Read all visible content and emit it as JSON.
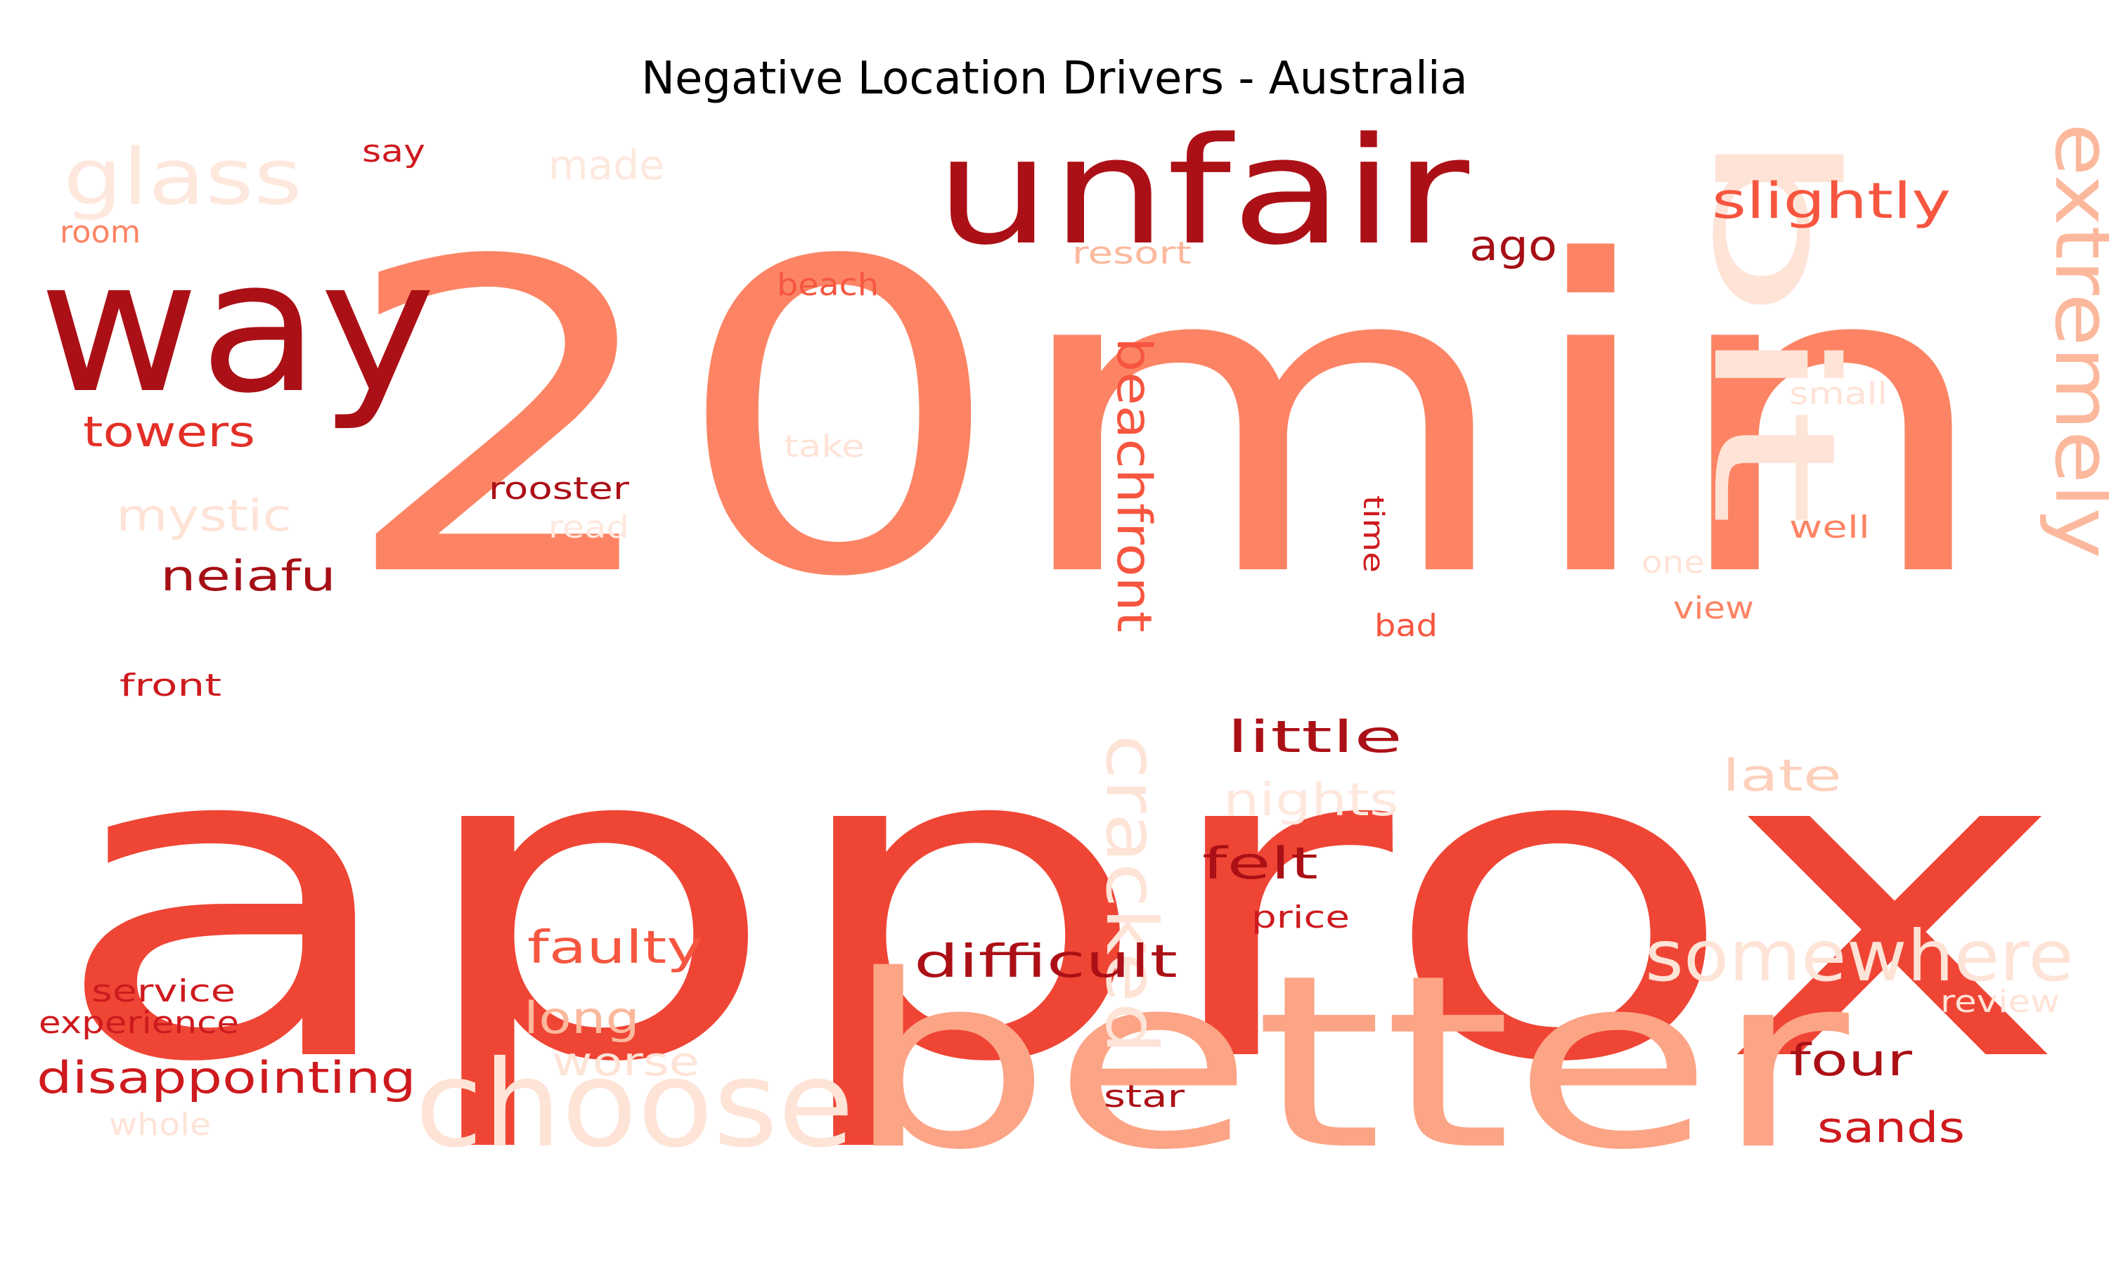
{
  "chart_data": {
    "type": "wordcloud",
    "title": "Negative Location Drivers - Australia",
    "colormap": "Reds",
    "words": [
      {
        "text": "approx",
        "color": "#ef4535"
      },
      {
        "text": "20min",
        "color": "#fc8464"
      },
      {
        "text": "better",
        "color": "#fca486"
      },
      {
        "text": "unfair",
        "color": "#ab1016"
      },
      {
        "text": "way",
        "color": "#ab1016"
      },
      {
        "text": "bit",
        "color": "#fee3d7"
      },
      {
        "text": "choose",
        "color": "#fee3d7"
      },
      {
        "text": "extremely",
        "color": "#fcb89c"
      },
      {
        "text": "somewhere",
        "color": "#fee3d7"
      },
      {
        "text": "cracked",
        "color": "#fee3d7"
      },
      {
        "text": "glass",
        "color": "#fee8de"
      },
      {
        "text": "slightly",
        "color": "#f6563f"
      },
      {
        "text": "beachfront",
        "color": "#f6563f"
      },
      {
        "text": "disappointing",
        "color": "#ce1a1e"
      },
      {
        "text": "difficult",
        "color": "#ab1016"
      },
      {
        "text": "neiafu",
        "color": "#a50f15"
      },
      {
        "text": "towers",
        "color": "#e32f27"
      },
      {
        "text": "faulty",
        "color": "#f6563f"
      },
      {
        "text": "little",
        "color": "#ab1016"
      },
      {
        "text": "nights",
        "color": "#fee8de"
      },
      {
        "text": "mystic",
        "color": "#fee3d7"
      },
      {
        "text": "sands",
        "color": "#ce1a1e"
      },
      {
        "text": "four",
        "color": "#ab1016"
      },
      {
        "text": "felt",
        "color": "#ab1016"
      },
      {
        "text": "long",
        "color": "#fcb89c"
      },
      {
        "text": "worse",
        "color": "#fee3d7"
      },
      {
        "text": "late",
        "color": "#fdd0bc"
      },
      {
        "text": "made",
        "color": "#fee8de"
      },
      {
        "text": "ago",
        "color": "#a50f15"
      },
      {
        "text": "rooster",
        "color": "#ab1016"
      },
      {
        "text": "beach",
        "color": "#f6563f"
      },
      {
        "text": "resort",
        "color": "#fcb89c"
      },
      {
        "text": "front",
        "color": "#ce1a1e"
      },
      {
        "text": "service",
        "color": "#ce1a1e"
      },
      {
        "text": "experience",
        "color": "#ce1a1e"
      },
      {
        "text": "whole",
        "color": "#fee3d7"
      },
      {
        "text": "say",
        "color": "#ce1a1e"
      },
      {
        "text": "room",
        "color": "#fc8464"
      },
      {
        "text": "take",
        "color": "#fee3d7"
      },
      {
        "text": "read",
        "color": "#fee8de"
      },
      {
        "text": "time",
        "color": "#ce1a1e"
      },
      {
        "text": "small",
        "color": "#fee3d7"
      },
      {
        "text": "well",
        "color": "#fc8464"
      },
      {
        "text": "one",
        "color": "#fee3d7"
      },
      {
        "text": "view",
        "color": "#fc8464"
      },
      {
        "text": "bad",
        "color": "#f6563f"
      },
      {
        "text": "price",
        "color": "#ce1a1e"
      },
      {
        "text": "star",
        "color": "#ab1016"
      },
      {
        "text": "review",
        "color": "#fee3d7"
      }
    ]
  }
}
